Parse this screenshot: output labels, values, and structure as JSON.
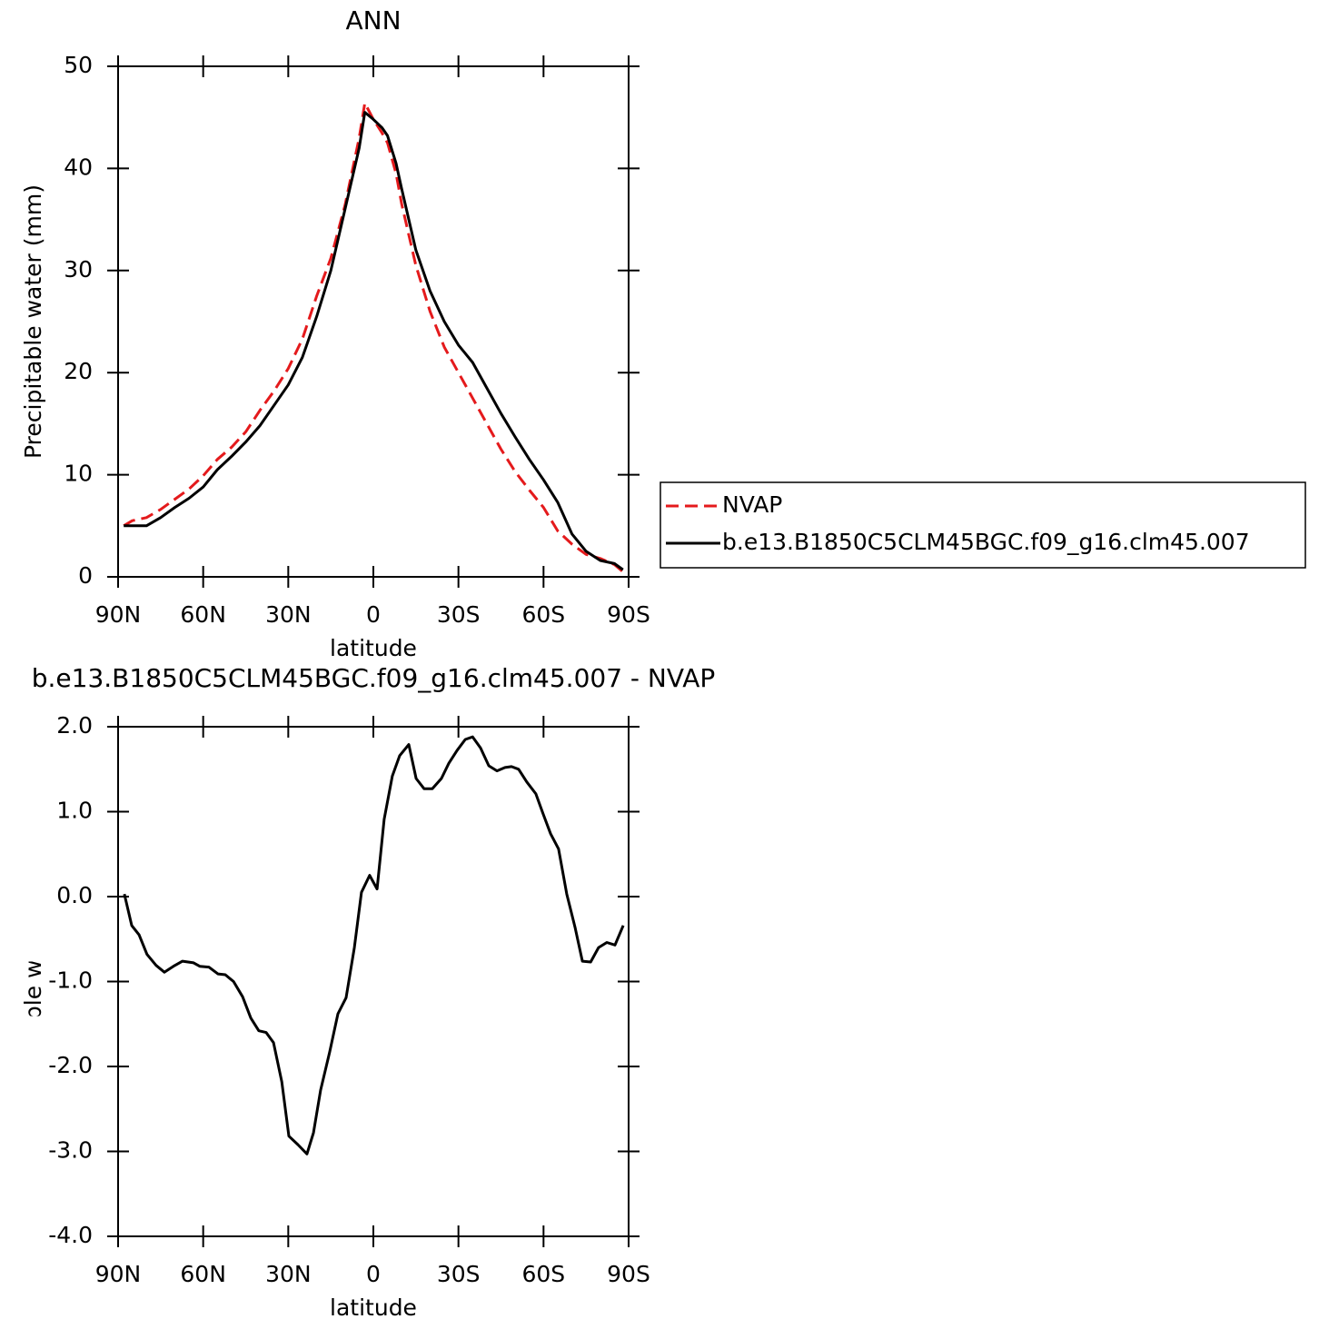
{
  "chart_data": [
    {
      "type": "line",
      "title": "ANN",
      "xlabel": "latitude",
      "ylabel": "Precipitable water (mm)",
      "x": [
        88,
        85,
        80,
        75,
        70,
        65,
        60,
        55,
        50,
        45,
        40,
        35,
        30,
        25,
        20,
        15,
        10,
        5,
        3,
        0,
        -3,
        -5,
        -8,
        -10,
        -15,
        -20,
        -25,
        -30,
        -35,
        -40,
        -45,
        -50,
        -55,
        -60,
        -65,
        -70,
        -75,
        -80,
        -85,
        -88
      ],
      "series": [
        {
          "name": "NVAP",
          "color": "#e41a1c",
          "style": "dashed",
          "values": [
            5.0,
            5.5,
            5.8,
            6.6,
            7.6,
            8.6,
            9.9,
            11.5,
            12.7,
            14.2,
            16.3,
            18.2,
            20.4,
            23.3,
            27.5,
            31.2,
            36.4,
            43.0,
            46.4,
            44.8,
            43.5,
            42.5,
            39.5,
            36.5,
            30.5,
            26.0,
            22.5,
            20.0,
            17.5,
            15.0,
            12.5,
            10.3,
            8.5,
            6.8,
            4.5,
            3.2,
            2.2,
            1.8,
            1.2,
            0.5
          ]
        },
        {
          "name": "b.e13.B1850C5CLM45BGC.f09_g16.clm45.007",
          "color": "#000000",
          "style": "solid",
          "values": [
            5.0,
            5.0,
            5.0,
            5.8,
            6.8,
            7.7,
            8.8,
            10.5,
            11.8,
            13.2,
            14.8,
            16.8,
            18.8,
            21.5,
            25.5,
            30.0,
            36.0,
            42.0,
            45.5,
            44.8,
            44.0,
            43.2,
            40.5,
            38.0,
            32.0,
            28.0,
            25.0,
            22.7,
            21.0,
            18.5,
            16.0,
            13.7,
            11.5,
            9.5,
            7.3,
            4.2,
            2.5,
            1.6,
            1.3,
            0.7
          ]
        }
      ],
      "xlim": [
        90,
        -90
      ],
      "xticks": [
        {
          "value": 90,
          "label": "90N"
        },
        {
          "value": 60,
          "label": "60N"
        },
        {
          "value": 30,
          "label": "30N"
        },
        0,
        {
          "value": -30,
          "label": "30S"
        },
        {
          "value": -60,
          "label": "60S"
        },
        {
          "value": -90,
          "label": "90S"
        }
      ],
      "ylim": [
        0,
        50
      ],
      "yticks": [
        0,
        10,
        20,
        30,
        40,
        50
      ],
      "legend": "right"
    },
    {
      "type": "line",
      "title": "b.e13.B1850C5CLM45BGC.f09_g16.clm45.007 - NVAP",
      "xlabel": "latitude",
      "ylabel": "Precipitable water (mm)",
      "x": [
        87.8,
        85.2,
        82.6,
        79.8,
        76.6,
        73.7,
        70.5,
        67.3,
        63.4,
        61.2,
        58.0,
        54.8,
        52.2,
        49.3,
        46.1,
        43.2,
        40.4,
        37.8,
        35.2,
        32.3,
        29.8,
        26.6,
        23.4,
        21.1,
        18.6,
        15.4,
        12.5,
        9.6,
        6.7,
        4.2,
        1.3,
        -1.3,
        -3.8,
        -6.7,
        -9.3,
        -12.5,
        -15.1,
        -17.9,
        -20.8,
        -24.0,
        -26.6,
        -29.5,
        -32.4,
        -35.0,
        -37.8,
        -40.7,
        -43.6,
        -46.4,
        -48.7,
        -51.2,
        -54.1,
        -57.3,
        -59.9,
        -62.5,
        -65.3,
        -68.2,
        -71.1,
        -73.7,
        -76.6,
        -79.4,
        -82.3,
        -85.2,
        -88.1
      ],
      "values": [
        0.03,
        -0.34,
        -0.45,
        -0.68,
        -0.81,
        -0.89,
        -0.82,
        -0.76,
        -0.78,
        -0.82,
        -0.83,
        -0.91,
        -0.92,
        -1.0,
        -1.18,
        -1.43,
        -1.58,
        -1.6,
        -1.72,
        -2.18,
        -2.82,
        -2.92,
        -3.03,
        -2.78,
        -2.28,
        -1.83,
        -1.38,
        -1.19,
        -0.6,
        0.05,
        0.25,
        0.09,
        0.91,
        1.42,
        1.66,
        1.79,
        1.39,
        1.27,
        1.27,
        1.39,
        1.57,
        1.72,
        1.85,
        1.88,
        1.75,
        1.54,
        1.48,
        1.52,
        1.53,
        1.5,
        1.35,
        1.21,
        0.97,
        0.74,
        0.56,
        0.03,
        -0.36,
        -0.76,
        -0.77,
        -0.6,
        -0.54,
        -0.57,
        -0.34
      ],
      "color": "#000000",
      "xlim": [
        90,
        -90
      ],
      "xticks": [
        {
          "value": 90,
          "label": "90N"
        },
        {
          "value": 60,
          "label": "60N"
        },
        {
          "value": 30,
          "label": "30N"
        },
        0,
        {
          "value": -30,
          "label": "30S"
        },
        {
          "value": -60,
          "label": "60S"
        },
        {
          "value": -90,
          "label": "90S"
        }
      ],
      "ylim": [
        -4,
        2
      ],
      "yticks": [
        {
          "value": -4,
          "label": "-4.0"
        },
        {
          "value": -3,
          "label": "-3.0"
        },
        {
          "value": -2,
          "label": "-2.0"
        },
        {
          "value": -1,
          "label": "-1.0"
        },
        {
          "value": 0,
          "label": "0.0"
        },
        {
          "value": 1,
          "label": "1.0"
        },
        {
          "value": 2,
          "label": "2.0"
        }
      ]
    }
  ]
}
